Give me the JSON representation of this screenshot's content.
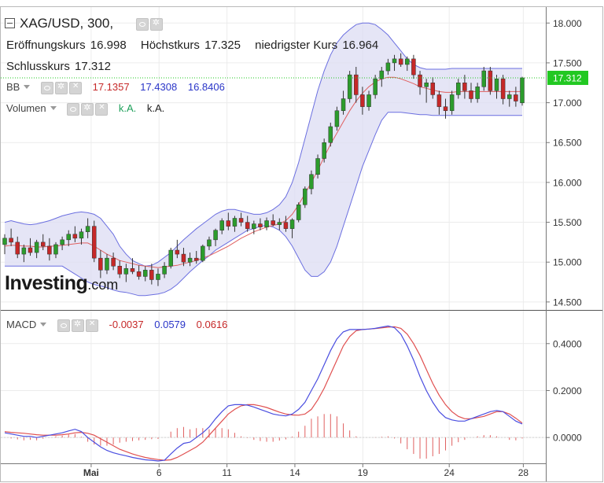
{
  "header": {
    "symbol": "XAG/USD, 300,",
    "open_label": "Eröffnungskurs",
    "open_value": "16.998",
    "high_label": "Höchstkurs",
    "high_value": "17.325",
    "low_label": "niedrigster Kurs",
    "low_value": "16.964",
    "close_label": "Schlusskurs",
    "close_value": "17.312"
  },
  "indicators": {
    "bb": {
      "label": "BB",
      "v1": "17.1357",
      "v2": "17.4308",
      "v3": "16.8406"
    },
    "volume": {
      "label": "Volumen",
      "v1": "k.A.",
      "v2": "k.A."
    },
    "macd": {
      "label": "MACD",
      "v1": "-0.0037",
      "v2": "0.0579",
      "v3": "0.0616"
    }
  },
  "logo": {
    "main": "Investing",
    "sub": ".com"
  },
  "colors": {
    "up": "#2c9c2c",
    "down": "#c62828",
    "band_line": "#6b6fe0",
    "band_fill": "#dcdcf3",
    "mid": "#e06060",
    "macd_line": "#4a4ee0",
    "signal_line": "#e05050",
    "hist": "#e06060",
    "price_tag": "#22c822"
  },
  "chart_data": [
    {
      "type": "candlestick",
      "title": "XAG/USD, 300,",
      "ylim": [
        14.4,
        18.2
      ],
      "y_ticks": [
        "14.500",
        "15.000",
        "15.500",
        "16.000",
        "16.500",
        "17.000",
        "17.500",
        "18.000"
      ],
      "x_ticks": [
        "Mai",
        "6",
        "11",
        "14",
        "19",
        "24",
        "28"
      ],
      "last_price": "17.312",
      "candles": [
        [
          15.22,
          15.35,
          15.1,
          15.3
        ],
        [
          15.3,
          15.42,
          15.2,
          15.25
        ],
        [
          15.25,
          15.32,
          15.05,
          15.1
        ],
        [
          15.1,
          15.22,
          15.0,
          15.18
        ],
        [
          15.18,
          15.3,
          15.08,
          15.12
        ],
        [
          15.12,
          15.28,
          15.05,
          15.25
        ],
        [
          15.25,
          15.35,
          15.15,
          15.2
        ],
        [
          15.2,
          15.3,
          15.02,
          15.1
        ],
        [
          15.1,
          15.25,
          15.05,
          15.22
        ],
        [
          15.22,
          15.32,
          15.15,
          15.28
        ],
        [
          15.28,
          15.4,
          15.2,
          15.35
        ],
        [
          15.35,
          15.45,
          15.25,
          15.3
        ],
        [
          15.3,
          15.42,
          15.22,
          15.38
        ],
        [
          15.38,
          15.55,
          15.3,
          15.45
        ],
        [
          15.45,
          15.52,
          15.0,
          15.05
        ],
        [
          15.05,
          15.15,
          14.8,
          14.9
        ],
        [
          14.9,
          15.1,
          14.85,
          15.05
        ],
        [
          15.05,
          15.12,
          14.9,
          14.95
        ],
        [
          14.95,
          15.02,
          14.8,
          14.85
        ],
        [
          14.85,
          14.98,
          14.75,
          14.92
        ],
        [
          14.92,
          15.05,
          14.85,
          14.88
        ],
        [
          14.88,
          14.96,
          14.78,
          14.82
        ],
        [
          14.82,
          14.95,
          14.76,
          14.9
        ],
        [
          14.9,
          14.98,
          14.72,
          14.78
        ],
        [
          14.78,
          14.92,
          14.7,
          14.85
        ],
        [
          14.85,
          15.0,
          14.8,
          14.95
        ],
        [
          14.95,
          15.18,
          14.92,
          15.15
        ],
        [
          15.15,
          15.28,
          15.05,
          15.1
        ],
        [
          15.1,
          15.18,
          14.95,
          15.0
        ],
        [
          15.0,
          15.12,
          14.95,
          15.05
        ],
        [
          15.05,
          15.14,
          14.98,
          15.02
        ],
        [
          15.02,
          15.22,
          15.0,
          15.2
        ],
        [
          15.2,
          15.32,
          15.15,
          15.28
        ],
        [
          15.28,
          15.42,
          15.2,
          15.4
        ],
        [
          15.4,
          15.55,
          15.35,
          15.52
        ],
        [
          15.52,
          15.62,
          15.4,
          15.45
        ],
        [
          15.45,
          15.58,
          15.38,
          15.55
        ],
        [
          15.55,
          15.62,
          15.45,
          15.5
        ],
        [
          15.5,
          15.58,
          15.38,
          15.42
        ],
        [
          15.42,
          15.52,
          15.35,
          15.48
        ],
        [
          15.48,
          15.55,
          15.4,
          15.44
        ],
        [
          15.44,
          15.56,
          15.4,
          15.52
        ],
        [
          15.52,
          15.6,
          15.45,
          15.47
        ],
        [
          15.47,
          15.55,
          15.4,
          15.5
        ],
        [
          15.5,
          15.58,
          15.38,
          15.42
        ],
        [
          15.42,
          15.55,
          15.3,
          15.53
        ],
        [
          15.53,
          15.75,
          15.5,
          15.72
        ],
        [
          15.72,
          15.95,
          15.68,
          15.92
        ],
        [
          15.92,
          16.15,
          15.85,
          16.1
        ],
        [
          16.1,
          16.35,
          16.05,
          16.3
        ],
        [
          16.3,
          16.55,
          16.25,
          16.5
        ],
        [
          16.5,
          16.75,
          16.45,
          16.7
        ],
        [
          16.7,
          16.95,
          16.65,
          16.9
        ],
        [
          16.9,
          17.15,
          16.85,
          17.05
        ],
        [
          17.05,
          17.4,
          17.0,
          17.35
        ],
        [
          17.35,
          17.45,
          17.0,
          17.1
        ],
        [
          17.1,
          17.2,
          16.85,
          16.95
        ],
        [
          16.95,
          17.15,
          16.9,
          17.1
        ],
        [
          17.1,
          17.35,
          17.05,
          17.3
        ],
        [
          17.3,
          17.45,
          17.2,
          17.4
        ],
        [
          17.4,
          17.55,
          17.35,
          17.5
        ],
        [
          17.5,
          17.6,
          17.4,
          17.55
        ],
        [
          17.55,
          17.62,
          17.45,
          17.48
        ],
        [
          17.48,
          17.58,
          17.4,
          17.55
        ],
        [
          17.55,
          17.6,
          17.3,
          17.35
        ],
        [
          17.35,
          17.4,
          17.1,
          17.2
        ],
        [
          17.2,
          17.3,
          17.0,
          17.25
        ],
        [
          17.25,
          17.32,
          17.05,
          17.1
        ],
        [
          17.1,
          17.15,
          16.85,
          16.95
        ],
        [
          16.95,
          17.05,
          16.8,
          16.9
        ],
        [
          16.9,
          17.15,
          16.85,
          17.1
        ],
        [
          17.1,
          17.3,
          17.05,
          17.25
        ],
        [
          17.25,
          17.35,
          17.05,
          17.15
        ],
        [
          17.15,
          17.25,
          17.0,
          17.05
        ],
        [
          17.05,
          17.25,
          17.0,
          17.2
        ],
        [
          17.2,
          17.45,
          17.15,
          17.4
        ],
        [
          17.4,
          17.45,
          17.1,
          17.15
        ],
        [
          17.15,
          17.35,
          17.05,
          17.3
        ],
        [
          17.3,
          17.35,
          16.98,
          17.05
        ],
        [
          17.05,
          17.15,
          16.95,
          17.1
        ],
        [
          17.1,
          17.2,
          16.95,
          17.02
        ],
        [
          16.998,
          17.325,
          16.964,
          17.312
        ]
      ],
      "bb_upper": [
        15.5,
        15.52,
        15.5,
        15.48,
        15.47,
        15.48,
        15.5,
        15.52,
        15.55,
        15.58,
        15.6,
        15.62,
        15.63,
        15.62,
        15.6,
        15.55,
        15.45,
        15.35,
        15.2,
        15.1,
        15.02,
        14.98,
        14.95,
        14.96,
        15.0,
        15.06,
        15.12,
        15.2,
        15.28,
        15.35,
        15.42,
        15.48,
        15.54,
        15.6,
        15.64,
        15.66,
        15.66,
        15.64,
        15.62,
        15.6,
        15.6,
        15.62,
        15.66,
        15.72,
        15.82,
        16.0,
        16.25,
        16.55,
        16.85,
        17.15,
        17.4,
        17.6,
        17.75,
        17.85,
        17.92,
        17.98,
        18.0,
        18.0,
        17.98,
        17.92,
        17.85,
        17.75,
        17.65,
        17.55,
        17.48,
        17.44,
        17.42,
        17.42,
        17.42,
        17.42,
        17.43,
        17.43,
        17.43,
        17.43,
        17.43,
        17.43,
        17.43,
        17.43,
        17.43,
        17.43,
        17.43,
        17.43
      ],
      "bb_middle": [
        15.2,
        15.21,
        15.21,
        15.2,
        15.2,
        15.19,
        15.19,
        15.2,
        15.2,
        15.21,
        15.22,
        15.23,
        15.24,
        15.24,
        15.2,
        15.15,
        15.1,
        15.06,
        15.02,
        15.0,
        14.98,
        14.96,
        14.95,
        14.94,
        14.93,
        14.94,
        14.95,
        14.96,
        14.98,
        15.0,
        15.02,
        15.05,
        15.08,
        15.12,
        15.16,
        15.2,
        15.25,
        15.3,
        15.34,
        15.38,
        15.41,
        15.44,
        15.46,
        15.48,
        15.52,
        15.6,
        15.72,
        15.86,
        16.0,
        16.15,
        16.32,
        16.48,
        16.62,
        16.76,
        16.9,
        17.02,
        17.12,
        17.2,
        17.26,
        17.3,
        17.32,
        17.32,
        17.3,
        17.27,
        17.24,
        17.2,
        17.18,
        17.16,
        17.14,
        17.13,
        17.13,
        17.14,
        17.14,
        17.14,
        17.14,
        17.14,
        17.14,
        17.14,
        17.14,
        17.14,
        17.14,
        17.14
      ],
      "bb_lower": [
        14.95,
        14.95,
        14.95,
        14.95,
        14.95,
        14.95,
        14.95,
        14.95,
        14.95,
        14.95,
        14.9,
        14.85,
        14.8,
        14.75,
        14.72,
        14.7,
        14.68,
        14.65,
        14.63,
        14.62,
        14.6,
        14.58,
        14.58,
        14.59,
        14.6,
        14.62,
        14.66,
        14.72,
        14.8,
        14.88,
        14.95,
        15.02,
        15.08,
        15.15,
        15.2,
        15.25,
        15.3,
        15.35,
        15.4,
        15.42,
        15.45,
        15.46,
        15.44,
        15.4,
        15.32,
        15.2,
        15.05,
        14.9,
        14.82,
        14.82,
        14.88,
        15.0,
        15.2,
        15.45,
        15.7,
        15.95,
        16.2,
        16.4,
        16.6,
        16.78,
        16.88,
        16.88,
        16.88,
        16.87,
        16.86,
        16.85,
        16.85,
        16.84,
        16.84,
        16.84,
        16.84,
        16.84,
        16.84,
        16.84,
        16.84,
        16.84,
        16.84,
        16.84,
        16.84,
        16.84,
        16.84,
        16.84
      ]
    },
    {
      "type": "line",
      "title": "MACD",
      "ylim": [
        -0.11,
        0.54
      ],
      "y_ticks": [
        "0.0000",
        "0.2000",
        "0.4000"
      ],
      "series": [
        {
          "name": "",
          "values": [
            0.02,
            0.015,
            0.01,
            0.005,
            0.005,
            0.0,
            0.005,
            0.01,
            0.015,
            0.02,
            0.028,
            0.035,
            0.025,
            0.0,
            -0.02,
            -0.04,
            -0.055,
            -0.065,
            -0.072,
            -0.078,
            -0.085,
            -0.09,
            -0.095,
            -0.097,
            -0.1,
            -0.097,
            -0.07,
            -0.045,
            -0.025,
            -0.02,
            0.0,
            0.02,
            0.045,
            0.08,
            0.11,
            0.135,
            0.14,
            0.14,
            0.138,
            0.13,
            0.12,
            0.11,
            0.1,
            0.095,
            0.092,
            0.1,
            0.12,
            0.15,
            0.2,
            0.25,
            0.31,
            0.37,
            0.42,
            0.45,
            0.46,
            0.46,
            0.46,
            0.462,
            0.465,
            0.47,
            0.475,
            0.468,
            0.44,
            0.39,
            0.33,
            0.26,
            0.2,
            0.15,
            0.11,
            0.085,
            0.075,
            0.07,
            0.07,
            0.08,
            0.09,
            0.1,
            0.11,
            0.115,
            0.11,
            0.09,
            0.07,
            0.058
          ]
        },
        {
          "name": "",
          "values": [
            0.025,
            0.022,
            0.02,
            0.018,
            0.015,
            0.012,
            0.01,
            0.01,
            0.01,
            0.012,
            0.015,
            0.02,
            0.022,
            0.018,
            0.01,
            -0.005,
            -0.02,
            -0.035,
            -0.05,
            -0.06,
            -0.07,
            -0.078,
            -0.085,
            -0.09,
            -0.094,
            -0.097,
            -0.095,
            -0.085,
            -0.07,
            -0.055,
            -0.04,
            -0.02,
            0.01,
            0.04,
            0.07,
            0.1,
            0.12,
            0.135,
            0.14,
            0.14,
            0.135,
            0.128,
            0.118,
            0.108,
            0.1,
            0.096,
            0.095,
            0.1,
            0.12,
            0.16,
            0.21,
            0.27,
            0.33,
            0.39,
            0.43,
            0.455,
            0.46,
            0.462,
            0.464,
            0.467,
            0.47,
            0.472,
            0.465,
            0.44,
            0.4,
            0.35,
            0.29,
            0.23,
            0.18,
            0.14,
            0.11,
            0.09,
            0.08,
            0.08,
            0.085,
            0.09,
            0.1,
            0.11,
            0.11,
            0.1,
            0.082,
            0.062
          ]
        }
      ],
      "histogram": [
        0,
        -0.004,
        -0.008,
        -0.012,
        -0.01,
        -0.012,
        -0.005,
        0,
        0.005,
        0.008,
        0.013,
        0.015,
        0.003,
        -0.018,
        -0.03,
        -0.035,
        -0.035,
        -0.03,
        -0.022,
        -0.018,
        -0.015,
        -0.012,
        -0.01,
        -0.007,
        -0.006,
        0,
        0.025,
        0.04,
        0.045,
        0.035,
        0.04,
        0.04,
        0.035,
        0.04,
        0.04,
        0.035,
        0.02,
        0.005,
        -0.002,
        -0.01,
        -0.015,
        -0.018,
        -0.018,
        -0.013,
        -0.008,
        0.004,
        0.025,
        0.05,
        0.08,
        0.09,
        0.1,
        0.1,
        0.09,
        0.06,
        0.03,
        0.005,
        0,
        0,
        0.001,
        0.003,
        0.005,
        -0.004,
        -0.025,
        -0.05,
        -0.07,
        -0.09,
        -0.09,
        -0.08,
        -0.07,
        -0.055,
        -0.035,
        -0.02,
        -0.01,
        0,
        0.005,
        0.01,
        0.01,
        0.005,
        0,
        -0.01,
        -0.012,
        -0.004
      ]
    }
  ]
}
